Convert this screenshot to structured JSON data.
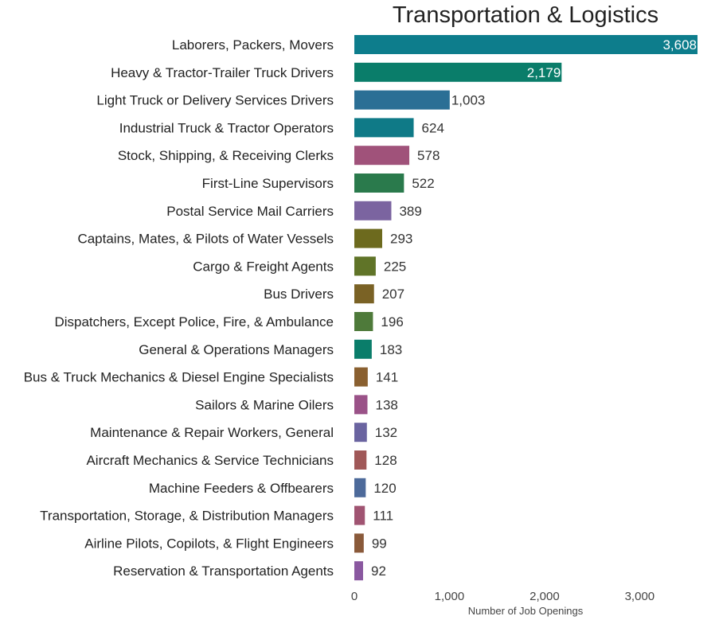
{
  "chart_data": {
    "type": "bar",
    "orientation": "horizontal",
    "title": "Transportation & Logistics",
    "xlabel": "Number of Job Openings",
    "ylabel": "",
    "xlim": [
      0,
      3608
    ],
    "xticks": [
      0,
      1000,
      2000,
      3000
    ],
    "xtick_labels": [
      "0",
      "1,000",
      "2,000",
      "3,000"
    ],
    "grid": false,
    "legend": "none",
    "categories": [
      "Laborers, Packers, Movers",
      "Heavy & Tractor-Trailer Truck Drivers",
      "Light Truck or Delivery Services Drivers",
      "Industrial Truck & Tractor Operators",
      "Stock, Shipping, & Receiving Clerks",
      "First-Line Supervisors",
      "Postal Service Mail Carriers",
      "Captains, Mates, & Pilots of Water Vessels",
      "Cargo & Freight Agents",
      "Bus Drivers",
      "Dispatchers, Except Police, Fire, & Ambulance",
      "General & Operations Managers",
      "Bus & Truck Mechanics & Diesel Engine Specialists",
      "Sailors & Marine Oilers",
      "Maintenance & Repair Workers, General",
      "Aircraft Mechanics & Service Technicians",
      "Machine Feeders & Offbearers",
      "Transportation, Storage, & Distribution Managers",
      "Airline Pilots, Copilots, & Flight Engineers",
      "Reservation & Transportation Agents"
    ],
    "values": [
      3608,
      2179,
      1003,
      624,
      578,
      522,
      389,
      293,
      225,
      207,
      196,
      183,
      141,
      138,
      132,
      128,
      120,
      111,
      99,
      92
    ],
    "value_labels": [
      "3,608",
      "2,179",
      "1,003",
      "624",
      "578",
      "522",
      "389",
      "293",
      "225",
      "207",
      "196",
      "183",
      "141",
      "138",
      "132",
      "128",
      "120",
      "111",
      "99",
      "92"
    ],
    "colors": [
      "#0d7d8c",
      "#0a7d6a",
      "#2b6f95",
      "#0f7a87",
      "#a0527a",
      "#2a7a4c",
      "#7b64a0",
      "#6d6a1e",
      "#607428",
      "#7a6225",
      "#4e7a3a",
      "#0a7d6a",
      "#8a6030",
      "#9a5288",
      "#6a64a0",
      "#a05858",
      "#4d6a9a",
      "#a05472",
      "#8a5a3a",
      "#8a58a0"
    ]
  }
}
